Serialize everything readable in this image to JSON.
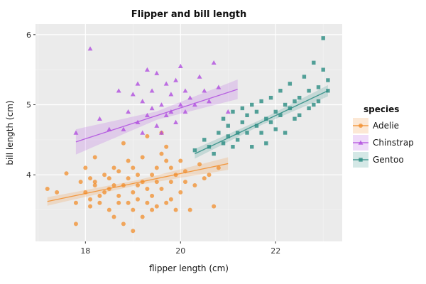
{
  "chart_data": {
    "type": "scatter",
    "title": "Flipper and bill length",
    "xlabel": "flipper length (cm)",
    "ylabel": "bill length (cm)",
    "xlim": [
      16.95,
      23.4
    ],
    "ylim": [
      3.05,
      6.15
    ],
    "xticks": [
      18,
      20,
      22
    ],
    "yticks": [
      4,
      5,
      6
    ],
    "grid": true,
    "legend_title": "species",
    "legend_position": "right",
    "series": [
      {
        "name": "Adelie",
        "color": "#f28e2b",
        "marker": "circle",
        "points": [
          [
            17.2,
            3.8
          ],
          [
            17.4,
            3.75
          ],
          [
            17.6,
            4.02
          ],
          [
            17.8,
            3.3
          ],
          [
            17.8,
            3.6
          ],
          [
            17.9,
            3.9
          ],
          [
            18.0,
            3.75
          ],
          [
            18.0,
            4.1
          ],
          [
            18.1,
            3.55
          ],
          [
            18.1,
            3.95
          ],
          [
            18.1,
            3.65
          ],
          [
            18.2,
            3.9
          ],
          [
            18.2,
            4.25
          ],
          [
            18.2,
            3.85
          ],
          [
            18.3,
            3.6
          ],
          [
            18.3,
            3.7
          ],
          [
            18.4,
            4.0
          ],
          [
            18.4,
            3.75
          ],
          [
            18.5,
            3.5
          ],
          [
            18.5,
            3.95
          ],
          [
            18.5,
            3.8
          ],
          [
            18.6,
            3.4
          ],
          [
            18.6,
            3.85
          ],
          [
            18.6,
            4.1
          ],
          [
            18.7,
            3.6
          ],
          [
            18.7,
            4.05
          ],
          [
            18.7,
            3.7
          ],
          [
            18.8,
            3.3
          ],
          [
            18.8,
            3.85
          ],
          [
            18.8,
            4.45
          ],
          [
            18.9,
            3.6
          ],
          [
            18.9,
            3.95
          ],
          [
            18.9,
            4.2
          ],
          [
            19.0,
            3.2
          ],
          [
            19.0,
            3.75
          ],
          [
            19.0,
            4.1
          ],
          [
            19.0,
            3.5
          ],
          [
            19.1,
            3.85
          ],
          [
            19.1,
            3.65
          ],
          [
            19.1,
            4.0
          ],
          [
            19.2,
            3.4
          ],
          [
            19.2,
            3.9
          ],
          [
            19.2,
            4.25
          ],
          [
            19.3,
            3.6
          ],
          [
            19.3,
            3.8
          ],
          [
            19.3,
            4.55
          ],
          [
            19.4,
            3.5
          ],
          [
            19.4,
            4.0
          ],
          [
            19.4,
            3.7
          ],
          [
            19.5,
            3.9
          ],
          [
            19.5,
            4.1
          ],
          [
            19.5,
            3.55
          ],
          [
            19.6,
            4.6
          ],
          [
            19.6,
            3.8
          ],
          [
            19.6,
            4.3
          ],
          [
            19.7,
            3.6
          ],
          [
            19.7,
            4.2
          ],
          [
            19.7,
            4.4
          ],
          [
            19.8,
            3.9
          ],
          [
            19.8,
            4.1
          ],
          [
            19.8,
            3.65
          ],
          [
            19.9,
            3.5
          ],
          [
            19.9,
            4.0
          ],
          [
            20.0,
            3.75
          ],
          [
            20.0,
            4.2
          ],
          [
            20.1,
            3.9
          ],
          [
            20.1,
            4.05
          ],
          [
            20.2,
            3.5
          ],
          [
            20.3,
            3.85
          ],
          [
            20.4,
            4.15
          ],
          [
            20.5,
            3.95
          ],
          [
            20.6,
            4.0
          ],
          [
            20.7,
            3.55
          ],
          [
            20.8,
            4.1
          ]
        ]
      },
      {
        "name": "Chinstrap",
        "color": "#b04ddf",
        "marker": "triangle",
        "points": [
          [
            17.8,
            4.6
          ],
          [
            18.1,
            5.8
          ],
          [
            18.3,
            4.8
          ],
          [
            18.5,
            4.65
          ],
          [
            18.7,
            5.2
          ],
          [
            18.8,
            4.65
          ],
          [
            18.9,
            4.9
          ],
          [
            19.0,
            5.15
          ],
          [
            19.1,
            4.75
          ],
          [
            19.1,
            5.3
          ],
          [
            19.2,
            4.6
          ],
          [
            19.2,
            5.05
          ],
          [
            19.3,
            5.5
          ],
          [
            19.3,
            4.85
          ],
          [
            19.4,
            4.95
          ],
          [
            19.4,
            5.2
          ],
          [
            19.5,
            4.7
          ],
          [
            19.5,
            5.45
          ],
          [
            19.6,
            4.6
          ],
          [
            19.6,
            5.0
          ],
          [
            19.7,
            5.3
          ],
          [
            19.7,
            4.85
          ],
          [
            19.8,
            5.15
          ],
          [
            19.8,
            4.9
          ],
          [
            19.9,
            5.35
          ],
          [
            19.9,
            4.75
          ],
          [
            20.0,
            5.0
          ],
          [
            20.0,
            5.55
          ],
          [
            20.1,
            4.9
          ],
          [
            20.1,
            5.2
          ],
          [
            20.2,
            5.1
          ],
          [
            20.3,
            5.0
          ],
          [
            20.4,
            5.4
          ],
          [
            20.5,
            5.2
          ],
          [
            20.6,
            5.05
          ],
          [
            20.7,
            5.6
          ],
          [
            20.8,
            5.25
          ],
          [
            21.0,
            4.9
          ]
        ]
      },
      {
        "name": "Gentoo",
        "color": "#2a8c82",
        "marker": "square",
        "points": [
          [
            20.3,
            4.35
          ],
          [
            20.5,
            4.5
          ],
          [
            20.6,
            4.4
          ],
          [
            20.7,
            4.3
          ],
          [
            20.8,
            4.6
          ],
          [
            20.9,
            4.45
          ],
          [
            20.9,
            4.8
          ],
          [
            21.0,
            4.55
          ],
          [
            21.0,
            4.7
          ],
          [
            21.1,
            4.4
          ],
          [
            21.1,
            4.9
          ],
          [
            21.2,
            4.6
          ],
          [
            21.2,
            4.5
          ],
          [
            21.3,
            4.75
          ],
          [
            21.3,
            4.95
          ],
          [
            21.4,
            4.6
          ],
          [
            21.4,
            4.85
          ],
          [
            21.5,
            4.4
          ],
          [
            21.5,
            5.0
          ],
          [
            21.6,
            4.7
          ],
          [
            21.6,
            4.9
          ],
          [
            21.7,
            4.6
          ],
          [
            21.7,
            5.05
          ],
          [
            21.8,
            4.8
          ],
          [
            21.8,
            4.45
          ],
          [
            21.9,
            5.1
          ],
          [
            21.9,
            4.75
          ],
          [
            22.0,
            4.9
          ],
          [
            22.0,
            4.65
          ],
          [
            22.1,
            5.2
          ],
          [
            22.1,
            4.85
          ],
          [
            22.2,
            5.0
          ],
          [
            22.2,
            4.6
          ],
          [
            22.3,
            4.95
          ],
          [
            22.3,
            5.3
          ],
          [
            22.4,
            4.8
          ],
          [
            22.4,
            5.05
          ],
          [
            22.5,
            5.1
          ],
          [
            22.5,
            4.85
          ],
          [
            22.6,
            5.4
          ],
          [
            22.7,
            4.95
          ],
          [
            22.7,
            5.2
          ],
          [
            22.8,
            5.6
          ],
          [
            22.8,
            5.0
          ],
          [
            22.9,
            5.25
          ],
          [
            22.9,
            5.05
          ],
          [
            23.0,
            5.95
          ],
          [
            23.0,
            5.5
          ],
          [
            23.1,
            5.35
          ],
          [
            23.1,
            5.2
          ]
        ]
      }
    ],
    "fits": [
      {
        "series": "Adelie",
        "x": [
          17.2,
          21.0
        ],
        "y": [
          3.62,
          4.16
        ],
        "band": [
          0.06,
          0.035,
          0.09
        ]
      },
      {
        "series": "Chinstrap",
        "x": [
          17.8,
          21.2
        ],
        "y": [
          4.47,
          5.22
        ],
        "band": [
          0.18,
          0.06,
          0.14
        ]
      },
      {
        "series": "Gentoo",
        "x": [
          20.3,
          23.1
        ],
        "y": [
          4.3,
          5.2
        ],
        "band": [
          0.07,
          0.04,
          0.08
        ]
      }
    ]
  }
}
